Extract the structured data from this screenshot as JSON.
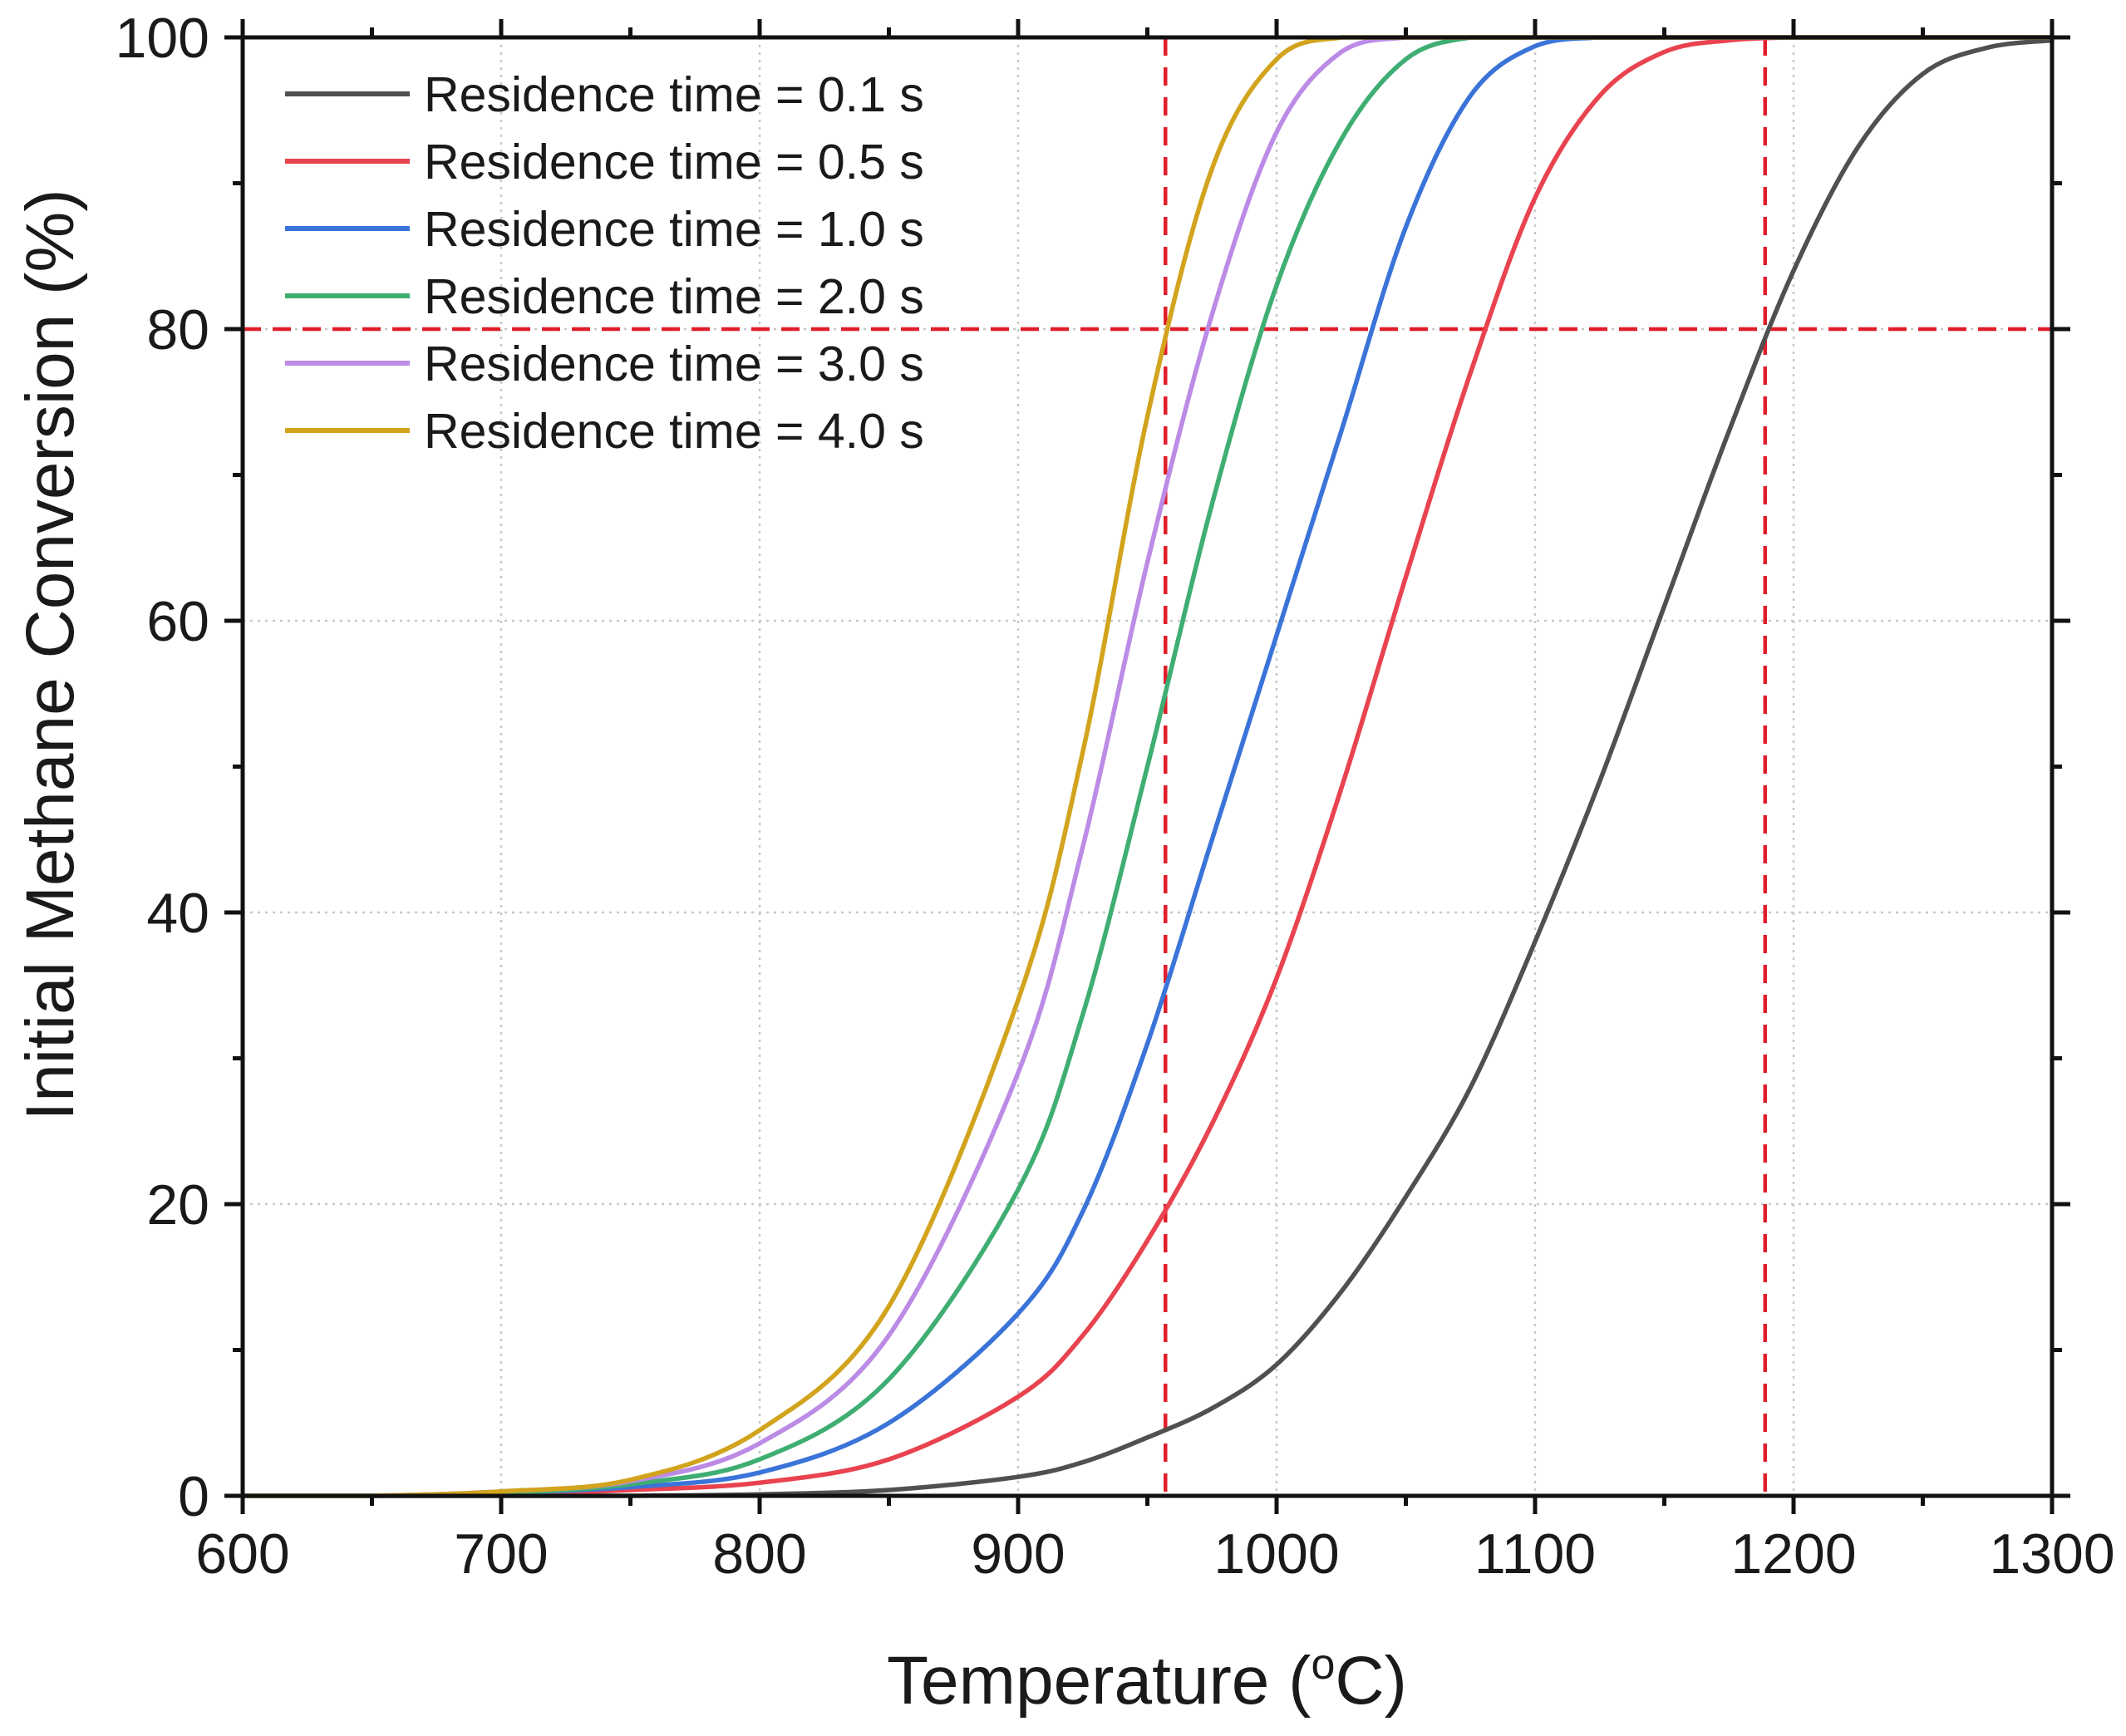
{
  "chart_data": {
    "type": "line",
    "title": "",
    "xlabel": "Temperature",
    "xlabel_sup": "o",
    "xlabel_unit": "C",
    "ylabel": "Initial Methane Conversion (%)",
    "xlim": [
      600,
      1300
    ],
    "ylim": [
      0,
      100
    ],
    "x_ticks": [
      600,
      700,
      800,
      900,
      1000,
      1100,
      1200,
      1300
    ],
    "y_ticks": [
      0,
      20,
      40,
      60,
      80,
      100
    ],
    "grid": true,
    "legend_position": "top-left",
    "x": [
      600,
      650,
      700,
      750,
      800,
      850,
      900,
      925,
      950,
      975,
      1000,
      1025,
      1050,
      1075,
      1100,
      1125,
      1150,
      1175,
      1200,
      1225,
      1250,
      1275,
      1300
    ],
    "series": [
      {
        "name": "Residence time = 0.1 s",
        "color": "#505050",
        "values": [
          0,
          0,
          0,
          0,
          0.1,
          0.4,
          1.3,
          2.3,
          4.0,
          6.0,
          9.0,
          14.0,
          20.5,
          28.0,
          38.0,
          49.0,
          61.0,
          73.0,
          84.0,
          92.5,
          97.5,
          99.3,
          99.8
        ]
      },
      {
        "name": "Residence time = 0.5 s",
        "color": "#e8434f",
        "values": [
          0,
          0,
          0.1,
          0.4,
          0.9,
          2.5,
          6.8,
          11.0,
          17.5,
          25.5,
          35.5,
          48.5,
          63.0,
          77.0,
          89.0,
          96.0,
          99.0,
          99.8,
          100,
          100,
          100,
          100,
          100
        ]
      },
      {
        "name": "Residence time = 1.0 s",
        "color": "#3b74d8",
        "values": [
          0,
          0,
          0.2,
          0.6,
          1.6,
          5.0,
          12.5,
          19.5,
          31.0,
          45.0,
          59.0,
          73.0,
          87.0,
          96.0,
          99.4,
          100,
          100,
          100,
          100,
          100,
          100,
          100,
          100
        ]
      },
      {
        "name": "Residence time = 2.0 s",
        "color": "#3fae72",
        "values": [
          0,
          0,
          0.2,
          0.8,
          2.5,
          8.0,
          21.0,
          33.0,
          50.0,
          68.0,
          83.0,
          93.0,
          98.5,
          100,
          100,
          100,
          100,
          100,
          100,
          100,
          100,
          100,
          100
        ]
      },
      {
        "name": "Residence time = 3.0 s",
        "color": "#bb8be6",
        "values": [
          0,
          0,
          0.3,
          1.0,
          3.6,
          11.0,
          29.0,
          44.5,
          64.0,
          81.0,
          93.5,
          99.0,
          100,
          100,
          100,
          100,
          100,
          100,
          100,
          100,
          100,
          100,
          100
        ]
      },
      {
        "name": "Residence time = 4.0 s",
        "color": "#d2a31d",
        "values": [
          0,
          0,
          0.3,
          1.1,
          4.5,
          13.0,
          34.0,
          51.0,
          74.0,
          91.0,
          98.5,
          100,
          100,
          100,
          100,
          100,
          100,
          100,
          100,
          100,
          100,
          100,
          100
        ]
      }
    ],
    "reference_lines": [
      {
        "orientation": "horizontal",
        "value": 80,
        "color": "#e01e2a",
        "style": "dashed"
      },
      {
        "orientation": "vertical",
        "value": 957,
        "color": "#e01e2a",
        "style": "dashed"
      },
      {
        "orientation": "vertical",
        "value": 1189,
        "color": "#e01e2a",
        "style": "dashed"
      }
    ]
  }
}
